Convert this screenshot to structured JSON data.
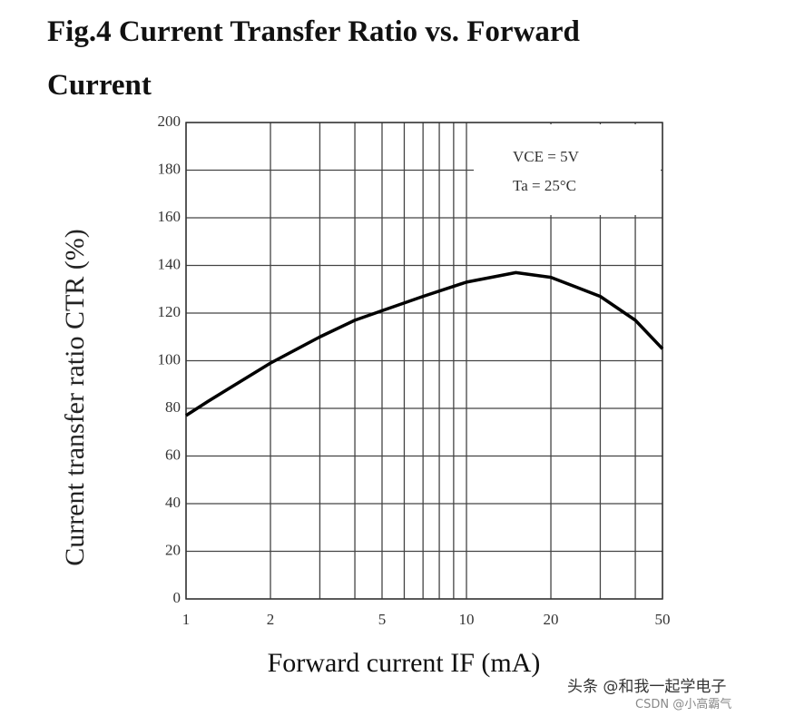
{
  "chart_data": {
    "type": "line",
    "title_lines": [
      "Fig.4 Current Transfer Ratio vs. Forward",
      "Current"
    ],
    "x_label": "Forward current IF (mA)",
    "y_label": "Current transfer ratio CTR (%)",
    "annotations": [
      "VCE = 5V",
      "Ta = 25°C"
    ],
    "x": [
      1,
      1.2,
      1.5,
      2,
      3,
      4,
      5,
      7,
      10,
      15,
      20,
      30,
      40,
      50
    ],
    "series": [
      {
        "name": "CTR",
        "color": "#000000",
        "values": [
          77,
          83,
          90,
          99,
          110,
          117,
          121,
          127,
          133,
          137,
          135,
          127,
          117,
          105
        ]
      }
    ],
    "xlim": [
      1,
      50
    ],
    "xscale": "log",
    "xticks": [
      1,
      2,
      5,
      10,
      20,
      50
    ],
    "xminorticks": [
      3,
      4,
      6,
      7,
      8,
      9,
      30,
      40
    ],
    "ylim": [
      0,
      200
    ],
    "yticks": [
      0,
      20,
      40,
      60,
      80,
      100,
      120,
      140,
      160,
      180,
      200
    ],
    "grid": true,
    "watermarks": [
      "头条 @和我一起学电子",
      "CSDN @小高霸气"
    ]
  }
}
